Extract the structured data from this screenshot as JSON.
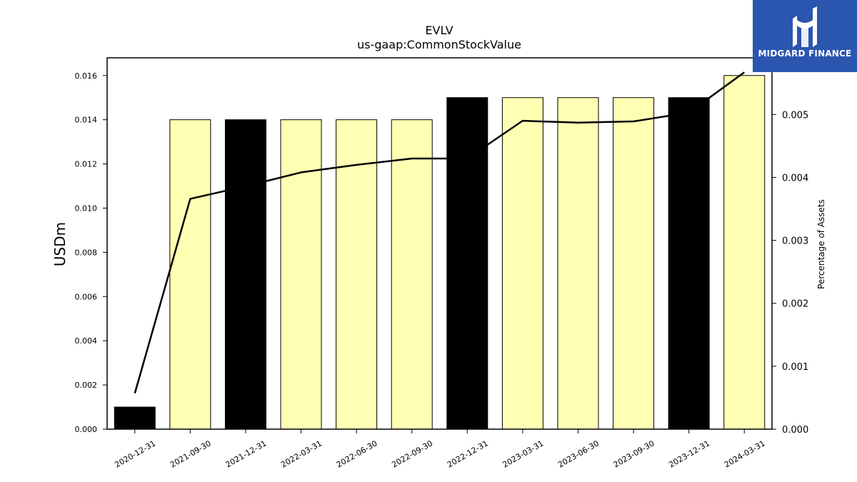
{
  "chart_data": {
    "type": "bar",
    "title": "EVLV",
    "subtitle": "us-gaap:CommonStockValue",
    "ylabel": "USDm",
    "y2label": "Percentage of Assets",
    "categories": [
      "2020-12-31",
      "2021-09-30",
      "2021-12-31",
      "2022-03-31",
      "2022-06-30",
      "2022-09-30",
      "2022-12-31",
      "2023-03-31",
      "2023-06-30",
      "2023-09-30",
      "2023-12-31",
      "2024-03-31"
    ],
    "values": [
      0.001,
      0.014,
      0.014,
      0.014,
      0.014,
      0.014,
      0.015,
      0.015,
      0.015,
      0.015,
      0.015,
      0.016
    ],
    "bar_colors": [
      "#000000",
      "#ffffb3",
      "#000000",
      "#ffffb3",
      "#ffffb3",
      "#ffffb3",
      "#000000",
      "#ffffb3",
      "#ffffb3",
      "#ffffb3",
      "#000000",
      "#ffffb3"
    ],
    "line_series": {
      "values": [
        0.00057,
        0.00366,
        0.00386,
        0.00408,
        0.0042,
        0.0043,
        0.0043,
        0.0049,
        0.00487,
        0.00489,
        0.00503,
        0.00567
      ]
    },
    "ylim": [
      0,
      0.0168
    ],
    "y2lim": [
      0,
      0.0059
    ],
    "yticks": [
      0.0,
      0.002,
      0.004,
      0.006,
      0.008,
      0.01,
      0.012,
      0.014,
      0.016
    ],
    "y2ticks": [
      0.0,
      0.001,
      0.002,
      0.003,
      0.004,
      0.005
    ],
    "ytick_labels": [
      "0.000",
      "0.002",
      "0.004",
      "0.006",
      "0.008",
      "0.010",
      "0.012",
      "0.014",
      "0.016"
    ],
    "y2tick_labels": [
      "0.000",
      "0.001",
      "0.002",
      "0.003",
      "0.004",
      "0.005"
    ],
    "grid": false,
    "legend": "none"
  },
  "logo": {
    "text": "MIDGARD FINANCE",
    "background": "#2a56b0",
    "icon": "midgard-logo-icon"
  }
}
